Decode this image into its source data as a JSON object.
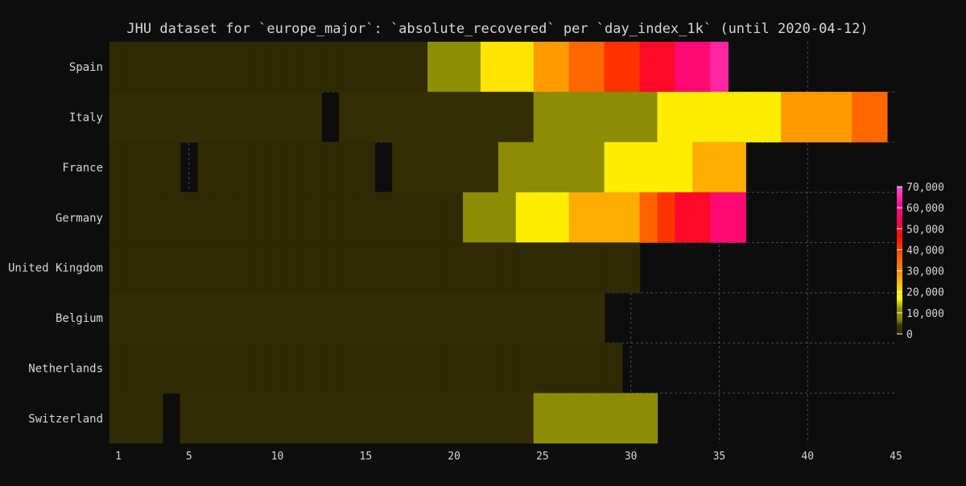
{
  "chart_data": {
    "type": "heatmap",
    "title": "JHU dataset for `europe_major`: `absolute_recovered` per `day_index_1k` (until 2020-04-12)",
    "x_ticks": [
      "1",
      "5",
      "10",
      "15",
      "20",
      "25",
      "30",
      "35",
      "40",
      "45"
    ],
    "xlim": [
      1,
      45
    ],
    "grid": true,
    "colorbar": {
      "labels": [
        "0",
        "10,000",
        "20,000",
        "30,000",
        "40,000",
        "50,000",
        "60,000",
        "70,000"
      ],
      "range": [
        0,
        70000
      ],
      "placement": "right"
    },
    "rows": [
      {
        "label": "Spain",
        "segments": [
          {
            "from": 1,
            "to": 18,
            "value": 30
          },
          {
            "from": 19,
            "to": 21,
            "value": 10000
          },
          {
            "from": 22,
            "to": 24,
            "value": 20000
          },
          {
            "from": 25,
            "to": 26,
            "value": 28000
          },
          {
            "from": 27,
            "to": 28,
            "value": 35000
          },
          {
            "from": 29,
            "to": 30,
            "value": 42000
          },
          {
            "from": 31,
            "to": 32,
            "value": 50000
          },
          {
            "from": 33,
            "to": 34,
            "value": 58000
          },
          {
            "from": 35,
            "to": 35,
            "value": 64000
          }
        ]
      },
      {
        "label": "Italy",
        "segments": [
          {
            "from": 1,
            "to": 12,
            "value": 1000
          },
          {
            "from": 14,
            "to": 24,
            "value": 1500
          },
          {
            "from": 25,
            "to": 31,
            "value": 9000
          },
          {
            "from": 32,
            "to": 38,
            "value": 19000
          },
          {
            "from": 39,
            "to": 42,
            "value": 28000
          },
          {
            "from": 43,
            "to": 44,
            "value": 35000
          }
        ]
      },
      {
        "label": "France",
        "segments": [
          {
            "from": 1,
            "to": 4,
            "value": 12
          },
          {
            "from": 6,
            "to": 15,
            "value": 12
          },
          {
            "from": 17,
            "to": 22,
            "value": 2000
          },
          {
            "from": 23,
            "to": 28,
            "value": 8000
          },
          {
            "from": 29,
            "to": 33,
            "value": 19000
          },
          {
            "from": 34,
            "to": 36,
            "value": 26000
          }
        ]
      },
      {
        "label": "Germany",
        "segments": [
          {
            "from": 1,
            "to": 20,
            "value": 50
          },
          {
            "from": 21,
            "to": 23,
            "value": 9000
          },
          {
            "from": 24,
            "to": 26,
            "value": 19000
          },
          {
            "from": 27,
            "to": 30,
            "value": 26000
          },
          {
            "from": 31,
            "to": 31,
            "value": 36000
          },
          {
            "from": 32,
            "to": 32,
            "value": 42000
          },
          {
            "from": 33,
            "to": 34,
            "value": 50000
          },
          {
            "from": 35,
            "to": 36,
            "value": 58000
          }
        ]
      },
      {
        "label": "United Kingdom",
        "segments": [
          {
            "from": 1,
            "to": 30,
            "value": 100
          }
        ]
      },
      {
        "label": "Belgium",
        "segments": [
          {
            "from": 1,
            "to": 28,
            "value": 1000
          }
        ]
      },
      {
        "label": "Netherlands",
        "segments": [
          {
            "from": 1,
            "to": 29,
            "value": 100
          }
        ]
      },
      {
        "label": "Switzerland",
        "segments": [
          {
            "from": 1,
            "to": 3,
            "value": 500
          },
          {
            "from": 5,
            "to": 24,
            "value": 1000
          },
          {
            "from": 25,
            "to": 31,
            "value": 9000
          }
        ]
      }
    ]
  }
}
